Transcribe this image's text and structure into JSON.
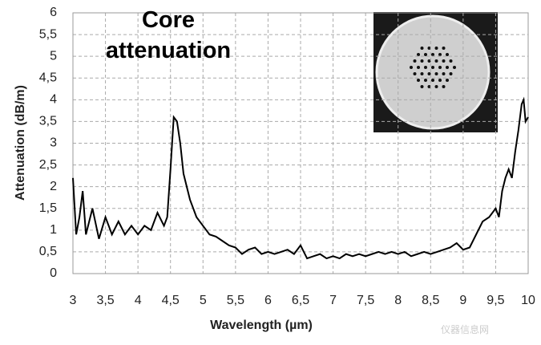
{
  "chart_data": {
    "type": "line",
    "title": "Core attenuation",
    "x_label": "Wavelength (µm)",
    "y_label": "Attenuation  (dB/m)",
    "watermark": "仪器信息网",
    "color": "#000000",
    "grid": true,
    "xlim": [
      3,
      10
    ],
    "ylim": [
      0,
      6
    ],
    "xticks": [
      3,
      {
        "value": 3.5,
        "label": "3,5"
      },
      4,
      {
        "value": 4.5,
        "label": "4,5"
      },
      5,
      {
        "value": 5.5,
        "label": "5,5"
      },
      6,
      {
        "value": 6.5,
        "label": "6,5"
      },
      7,
      {
        "value": 7.5,
        "label": "7,5"
      },
      8,
      {
        "value": 8.5,
        "label": "8,5"
      },
      9,
      {
        "value": 9.5,
        "label": "9,5"
      },
      10
    ],
    "yticks": [
      0,
      {
        "value": 0.5,
        "label": "0,5"
      },
      1,
      {
        "value": 1.5,
        "label": "1,5"
      },
      2,
      {
        "value": 2.5,
        "label": "2,5"
      },
      3,
      {
        "value": 3.5,
        "label": "3,5"
      },
      4,
      {
        "value": 4.5,
        "label": "4,5"
      },
      5,
      {
        "value": 5.5,
        "label": "5,5"
      },
      6
    ],
    "x": [
      3.0,
      3.05,
      3.1,
      3.15,
      3.2,
      3.3,
      3.4,
      3.5,
      3.6,
      3.7,
      3.8,
      3.9,
      4.0,
      4.1,
      4.2,
      4.3,
      4.4,
      4.45,
      4.5,
      4.55,
      4.6,
      4.65,
      4.7,
      4.8,
      4.9,
      5.0,
      5.1,
      5.2,
      5.3,
      5.4,
      5.5,
      5.6,
      5.7,
      5.8,
      5.9,
      6.0,
      6.1,
      6.2,
      6.3,
      6.4,
      6.5,
      6.6,
      6.7,
      6.8,
      6.9,
      7.0,
      7.1,
      7.2,
      7.3,
      7.4,
      7.5,
      7.6,
      7.7,
      7.8,
      7.9,
      8.0,
      8.1,
      8.2,
      8.3,
      8.4,
      8.5,
      8.6,
      8.7,
      8.8,
      8.9,
      9.0,
      9.1,
      9.2,
      9.3,
      9.4,
      9.5,
      9.55,
      9.6,
      9.65,
      9.7,
      9.75,
      9.8,
      9.85,
      9.9,
      9.93,
      9.96,
      10.0
    ],
    "values": [
      2.2,
      0.9,
      1.3,
      1.9,
      0.9,
      1.5,
      0.8,
      1.3,
      0.9,
      1.2,
      0.9,
      1.1,
      0.9,
      1.1,
      1.0,
      1.4,
      1.1,
      1.3,
      2.4,
      3.6,
      3.5,
      3.0,
      2.3,
      1.7,
      1.3,
      1.1,
      0.9,
      0.85,
      0.75,
      0.65,
      0.6,
      0.45,
      0.55,
      0.6,
      0.45,
      0.5,
      0.45,
      0.5,
      0.55,
      0.45,
      0.65,
      0.35,
      0.4,
      0.45,
      0.35,
      0.4,
      0.35,
      0.45,
      0.4,
      0.45,
      0.4,
      0.45,
      0.5,
      0.45,
      0.5,
      0.45,
      0.5,
      0.4,
      0.45,
      0.5,
      0.45,
      0.5,
      0.55,
      0.6,
      0.7,
      0.55,
      0.6,
      0.9,
      1.2,
      1.3,
      1.5,
      1.3,
      1.9,
      2.2,
      2.4,
      2.2,
      2.8,
      3.3,
      3.9,
      4.0,
      3.5,
      3.6
    ]
  }
}
